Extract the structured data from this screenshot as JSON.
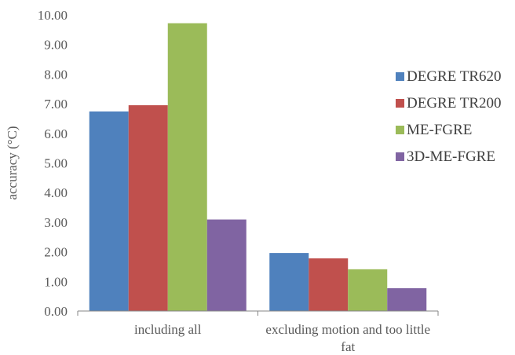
{
  "chart_data": {
    "type": "bar",
    "categories": [
      "including all",
      "excluding motion and too little fat"
    ],
    "series": [
      {
        "name": "DEGRE TR620",
        "values": [
          6.74,
          1.96
        ],
        "color": "#4F81BD"
      },
      {
        "name": "DEGRE TR200",
        "values": [
          6.95,
          1.78
        ],
        "color": "#C0504D"
      },
      {
        "name": "ME-FGRE",
        "values": [
          9.72,
          1.41
        ],
        "color": "#9BBB59"
      },
      {
        "name": "3D-ME-FGRE",
        "values": [
          3.09,
          0.77
        ],
        "color": "#8064A2"
      }
    ],
    "ylabel": "accuracy (°C)",
    "ylim": [
      0,
      10
    ],
    "ytick_step": 1,
    "ytick_labels": [
      "0.00",
      "1.00",
      "2.00",
      "3.00",
      "4.00",
      "5.00",
      "6.00",
      "7.00",
      "8.00",
      "9.00",
      "10.00"
    ],
    "grid": false,
    "legend_position": "right"
  }
}
